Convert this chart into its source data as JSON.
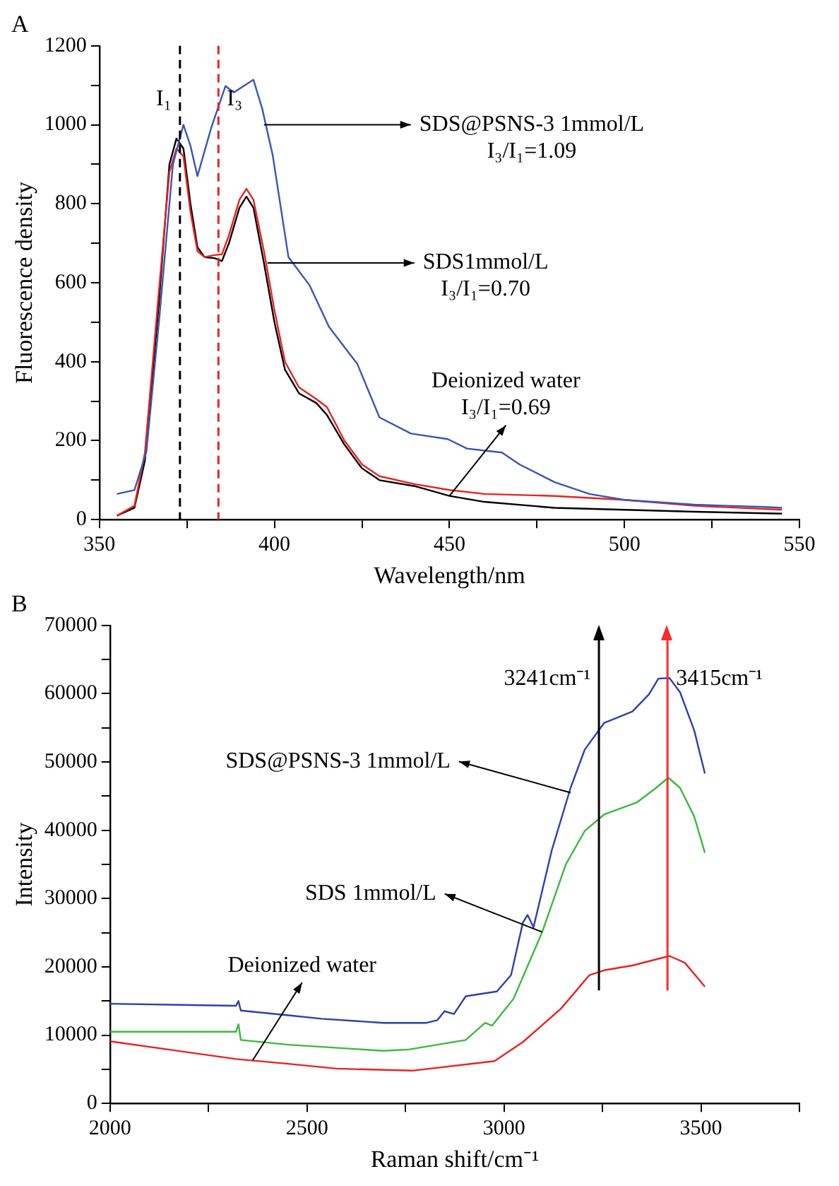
{
  "chart_data": [
    {
      "type": "line",
      "title": "A",
      "xlabel": "Wavelength/nm",
      "ylabel": "Fluorescence density",
      "xlim": [
        350,
        550
      ],
      "ylim": [
        0,
        1200
      ],
      "xticks": [
        350,
        {
          "value": 375,
          "label": null
        },
        400,
        {
          "value": 425,
          "label": null
        },
        450,
        {
          "value": 475,
          "label": null
        },
        500,
        {
          "value": 525,
          "label": null
        },
        550
      ],
      "yticks": [
        0,
        {
          "value": 100,
          "label": null
        },
        200,
        {
          "value": 300,
          "label": null
        },
        400,
        {
          "value": 500,
          "label": null
        },
        600,
        {
          "value": 700,
          "label": null
        },
        800,
        {
          "value": 900,
          "label": null
        },
        1000,
        {
          "value": 1100,
          "label": null
        },
        1200
      ],
      "grid": false,
      "legend": false,
      "marker": "none",
      "line_style": "solid",
      "series": [
        {
          "color": "#3a55b4",
          "x": [
            355,
            360,
            363.4,
            367,
            371,
            374,
            376,
            378,
            382,
            386,
            388.4,
            394,
            396.5,
            399.5,
            404,
            410,
            415.6,
            423.7,
            430,
            439,
            449.5,
            455,
            460,
            465,
            470,
            480,
            490,
            500,
            520,
            540,
            545
          ],
          "values": [
            65,
            75,
            171,
            500,
            900,
            1000,
            947,
            870,
            994,
            1098,
            1082,
            1114,
            1041,
            923,
            665,
            594,
            488,
            394,
            259,
            218,
            204,
            180,
            175,
            170,
            140,
            95,
            65,
            50,
            38,
            32,
            30
          ]
        },
        {
          "color": "#e8231f",
          "x": [
            355,
            360,
            363,
            367,
            370,
            372,
            374,
            376,
            378,
            380,
            383,
            385,
            387,
            390,
            392,
            394,
            397,
            400,
            403,
            407,
            412,
            415,
            420,
            425,
            430,
            440,
            450,
            460,
            480,
            500,
            520,
            545
          ],
          "values": [
            10,
            35,
            170,
            580,
            880,
            940,
            920,
            780,
            680,
            665,
            670,
            672,
            720,
            810,
            838,
            810,
            680,
            530,
            400,
            335,
            305,
            285,
            200,
            140,
            110,
            90,
            75,
            65,
            60,
            50,
            35,
            25
          ]
        },
        {
          "color": "#000000",
          "x": [
            355,
            360,
            363,
            367,
            370,
            372,
            374,
            376,
            378,
            380,
            383,
            385,
            387,
            390,
            392,
            394,
            397,
            400,
            403,
            407,
            412,
            415,
            420,
            425,
            430,
            440,
            450,
            460,
            480,
            500,
            520,
            545
          ],
          "values": [
            10,
            30,
            150,
            550,
            900,
            965,
            940,
            800,
            690,
            665,
            662,
            655,
            700,
            790,
            818,
            790,
            650,
            500,
            380,
            320,
            295,
            265,
            190,
            130,
            100,
            85,
            60,
            45,
            30,
            25,
            20,
            15
          ]
        }
      ],
      "ref_lines": [
        {
          "axis": "x",
          "value": 373,
          "label": "I₁",
          "color": "#000000",
          "line_style": "dashed"
        },
        {
          "axis": "x",
          "value": 384,
          "label": "I₃",
          "color": "#e8231f",
          "line_style": "dashed"
        }
      ],
      "annotations": [
        {
          "text": "SDS@PSNS-3 1mmol/L\nI₃/I₁=1.09",
          "x": 397,
          "y": 1000
        },
        {
          "text": "SDS1mmol/L\nI₃/I₁=0.70",
          "x": 398,
          "y": 650
        },
        {
          "text": "Deionized water\nI₃/I₁=0.69",
          "x": 450,
          "y": 60
        }
      ]
    },
    {
      "type": "line",
      "title": "B",
      "xlabel": "Raman shift/cm⁻¹",
      "ylabel": "Intensity",
      "xlim": [
        2000,
        3750
      ],
      "ylim": [
        0,
        70000
      ],
      "xticks": [
        2000,
        {
          "value": 2250,
          "label": null
        },
        2500,
        {
          "value": 2750,
          "label": null
        },
        3000,
        {
          "value": 3250,
          "label": null
        },
        3500,
        {
          "value": 3750,
          "label": null
        }
      ],
      "yticks": [
        0,
        {
          "value": 5000,
          "label": null
        },
        10000,
        {
          "value": 15000,
          "label": null
        },
        20000,
        {
          "value": 25000,
          "label": null
        },
        30000,
        {
          "value": 35000,
          "label": null
        },
        40000,
        {
          "value": 45000,
          "label": null
        },
        50000,
        {
          "value": 55000,
          "label": null
        },
        60000,
        {
          "value": 65000,
          "label": null
        },
        70000
      ],
      "grid": false,
      "legend": false,
      "marker": "none",
      "line_style": "solid",
      "series": [
        {
          "color": "#2e3fb0",
          "x": [
            2000,
            2320,
            2326,
            2332,
            2453,
            2537,
            2694,
            2803,
            2831,
            2849,
            2873,
            2903,
            2982,
            3018,
            3048,
            3060,
            3075,
            3121,
            3169,
            3205,
            3254,
            3326,
            3368,
            3392,
            3420,
            3447,
            3483,
            3510
          ],
          "values": [
            14600,
            14300,
            15000,
            13600,
            12900,
            12400,
            11800,
            11800,
            12200,
            13500,
            13100,
            15700,
            16400,
            18800,
            26500,
            27600,
            25800,
            37000,
            46200,
            51800,
            55700,
            57400,
            59900,
            62200,
            62300,
            60200,
            54600,
            48300
          ]
        },
        {
          "color": "#3cb93c",
          "x": [
            2000,
            2320,
            2326,
            2332,
            2453,
            2694,
            2758,
            2903,
            2952,
            2970,
            3024,
            3097,
            3157,
            3205,
            3254,
            3338,
            3386,
            3417,
            3447,
            3483,
            3510
          ],
          "values": [
            10500,
            10500,
            11600,
            9300,
            8600,
            7700,
            7900,
            9300,
            11800,
            11400,
            15300,
            25100,
            35000,
            39900,
            42300,
            44100,
            46200,
            47700,
            46200,
            42000,
            36700
          ]
        },
        {
          "color": "#e8231f",
          "x": [
            2000,
            2320,
            2453,
            2574,
            2767,
            2976,
            3048,
            3145,
            3217,
            3254,
            3326,
            3420,
            3459,
            3510
          ],
          "values": [
            9100,
            6500,
            5800,
            5100,
            4800,
            6200,
            9000,
            13900,
            18800,
            19500,
            20200,
            21600,
            20600,
            17100
          ]
        }
      ],
      "ref_lines": [
        {
          "axis": "x",
          "value": 3241,
          "label": "3241cm⁻¹",
          "color": "#000000",
          "line_style": "solid"
        },
        {
          "axis": "x",
          "value": 3415,
          "label": "3415cm⁻¹",
          "color": "#ff2a2a",
          "line_style": "solid"
        }
      ],
      "annotations": [
        {
          "text": "SDS@PSNS-3 1mmol/L",
          "x": 3169,
          "y": 45500
        },
        {
          "text": "SDS 1mmol/L",
          "x": 3097,
          "y": 25100
        },
        {
          "text": "Deionized water",
          "x": 2362,
          "y": 6300
        }
      ]
    }
  ]
}
